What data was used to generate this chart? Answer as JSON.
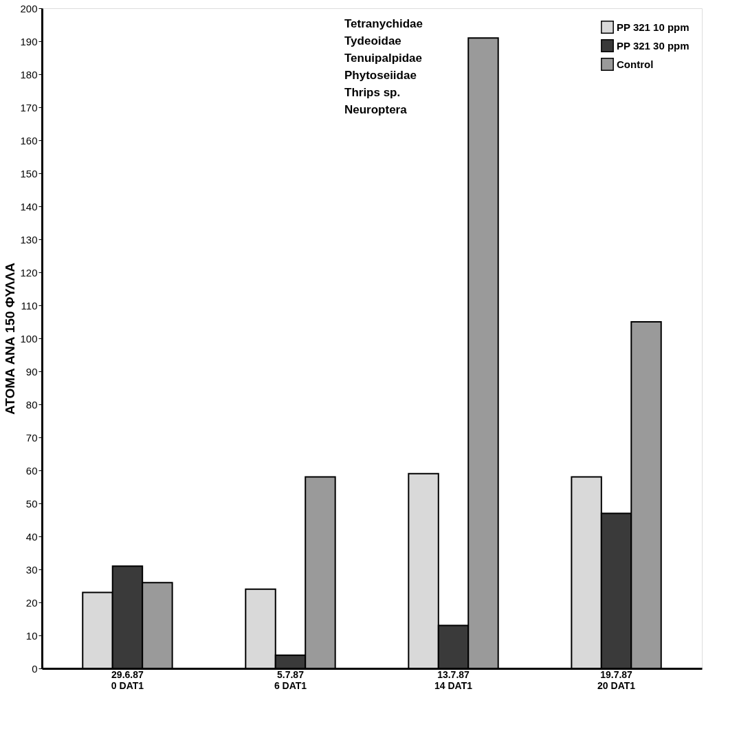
{
  "chart_data": {
    "type": "bar",
    "ylabel": "ΑΤΟΜΑ ΑΝΑ 150 ΦΥΛΛΑ",
    "categories": [
      "29.6.87\n0 DAT1",
      "5.7.87\n6 DAT1",
      "13.7.87\n14 DAT1",
      "19.7.87\n20 DAT1"
    ],
    "series": [
      {
        "name": "PP 321 10 ppm",
        "color": "#d9d9d9",
        "values": [
          23,
          24,
          59,
          58
        ]
      },
      {
        "name": "PP 321 30 ppm",
        "color": "#3a3a3a",
        "values": [
          31,
          4,
          13,
          47
        ]
      },
      {
        "name": "Control",
        "color": "#9a9a9a",
        "values": [
          26,
          58,
          191,
          105
        ]
      }
    ],
    "ylim": [
      0,
      200
    ],
    "yticks": [
      0,
      10,
      20,
      30,
      40,
      50,
      60,
      70,
      80,
      90,
      100,
      110,
      120,
      130,
      140,
      150,
      160,
      170,
      180,
      190,
      200
    ],
    "annotations": [
      "Tetranychidae",
      "Tydeoidae",
      "Tenuipalpidae",
      "Phytoseiidae",
      "Thrips sp.",
      "Neuroptera"
    ],
    "legend": "top right",
    "grid": false
  }
}
